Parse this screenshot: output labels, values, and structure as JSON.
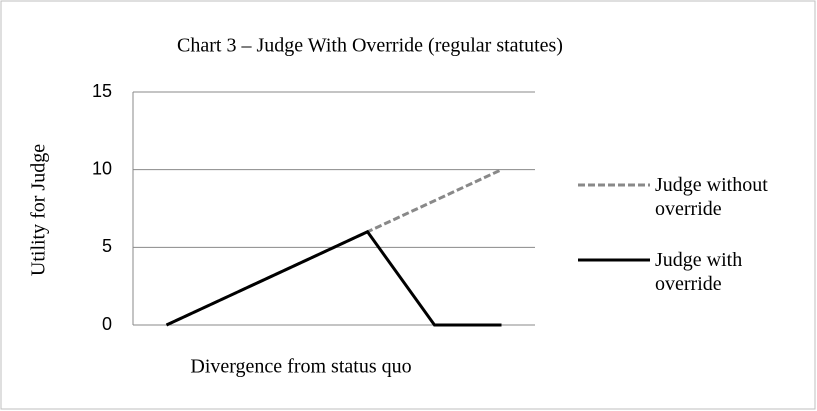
{
  "chart_data": {
    "type": "line",
    "title": "Chart 3 – Judge With Override (regular statutes)",
    "x_label": "Divergence from status quo",
    "y_label": "Utility for Judge",
    "categories": [
      null,
      null,
      null,
      null,
      null,
      null
    ],
    "series": [
      {
        "name": "Judge without override",
        "color": "#898989",
        "dash": true,
        "values": [
          0,
          2,
          4,
          6,
          8,
          10
        ]
      },
      {
        "name": "Judge with override",
        "color": "#000000",
        "dash": false,
        "values": [
          0,
          2,
          4,
          6,
          0,
          0
        ]
      }
    ],
    "ylim": [
      0,
      15
    ],
    "yticks": [
      0,
      5,
      10,
      15
    ],
    "grid": true,
    "legend": "right"
  }
}
